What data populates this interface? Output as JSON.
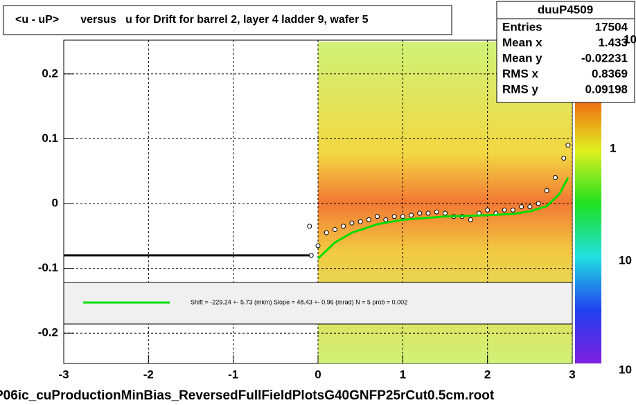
{
  "chart_data": {
    "type": "scatter",
    "title": "<u - uP>       versus   u for Drift for barrel 2, layer 4 ladder 9, wafer 5",
    "footer": "P06ic_cuProductionMinBias_ReversedFullFieldPlotsG40GNFP25rCut0.5cm.root",
    "xlim": [
      -3,
      3
    ],
    "xticks": [
      -3,
      -2,
      -1,
      0,
      1,
      2,
      3
    ],
    "ylim": [
      -0.25,
      0.25
    ],
    "yticks": [
      -0.2,
      -0.1,
      0,
      0.1,
      0.2
    ],
    "grid": true,
    "series": [
      {
        "color": "#000000",
        "style": "points",
        "x": [
          -0.1,
          -0.08,
          0.0,
          0.1,
          0.2,
          0.3,
          0.4,
          0.5,
          0.6,
          0.7,
          0.8,
          0.9,
          1.0,
          1.1,
          1.2,
          1.3,
          1.4,
          1.5,
          1.6,
          1.7,
          1.8,
          1.9,
          2.0,
          2.1,
          2.2,
          2.3,
          2.4,
          2.5,
          2.6,
          2.7,
          2.8,
          2.9,
          2.95
        ],
        "values": [
          -0.035,
          -0.08,
          -0.065,
          -0.045,
          -0.04,
          -0.035,
          -0.03,
          -0.028,
          -0.025,
          -0.02,
          -0.025,
          -0.02,
          -0.02,
          -0.018,
          -0.015,
          -0.015,
          -0.013,
          -0.015,
          -0.02,
          -0.02,
          -0.025,
          -0.015,
          -0.01,
          -0.015,
          -0.01,
          -0.01,
          -0.005,
          -0.005,
          0.0,
          0.02,
          0.04,
          0.07,
          0.09
        ]
      },
      {
        "color": "#00dd00",
        "style": "line",
        "x": [
          0.0,
          0.2,
          0.4,
          0.7,
          1.0,
          1.5,
          2.0,
          2.3,
          2.5,
          2.7,
          2.85,
          2.95
        ],
        "values": [
          -0.085,
          -0.06,
          -0.045,
          -0.032,
          -0.025,
          -0.02,
          -0.018,
          -0.016,
          -0.012,
          -0.004,
          0.015,
          0.04
        ]
      },
      {
        "color": "#000000",
        "style": "line",
        "x": [
          -3,
          -0.1
        ],
        "values": [
          -0.08,
          -0.08
        ]
      }
    ],
    "fit_legend": {
      "color": "#00dd00",
      "text": "Shift =  -229.24 +- 5.73 (mkm) Slope =    48.43 +- 0.96 (mrad)  N = 5 prob = 0.002"
    },
    "stats": {
      "title": "duuP4509",
      "rows": [
        {
          "label": "Entries",
          "value": 17504
        },
        {
          "label": "Mean x",
          "value": 1.433
        },
        {
          "label": "Mean y",
          "value": -0.02231
        },
        {
          "label": "RMS x",
          "value": 0.8369
        },
        {
          "label": "RMS y",
          "value": 0.09198
        }
      ]
    },
    "colorbar_labels": [
      "10",
      "1",
      "10",
      "10"
    ]
  }
}
